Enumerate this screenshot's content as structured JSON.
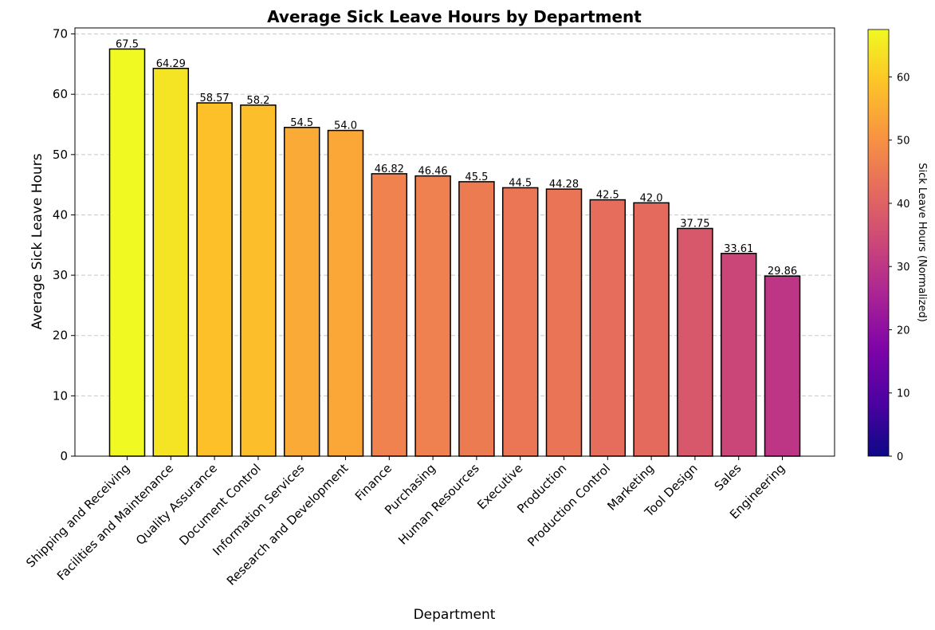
{
  "chart_data": {
    "type": "bar",
    "title": "Average Sick Leave Hours by Department",
    "xlabel": "Department",
    "ylabel": "Average Sick Leave Hours",
    "ylim": [
      0,
      71
    ],
    "yticks": [
      0,
      10,
      20,
      30,
      40,
      50,
      60,
      70
    ],
    "grid": "y-dashed",
    "categories": [
      "Shipping and Receiving",
      "Facilities and Maintenance",
      "Quality Assurance",
      "Document Control",
      "Information Services",
      "Research and Development",
      "Finance",
      "Purchasing",
      "Human Resources",
      "Executive",
      "Production",
      "Production Control",
      "Marketing",
      "Tool Design",
      "Sales",
      "Engineering"
    ],
    "values": [
      67.5,
      64.29,
      58.57,
      58.2,
      54.5,
      54.0,
      46.82,
      46.46,
      45.5,
      44.5,
      44.28,
      42.5,
      42.0,
      37.75,
      33.61,
      29.86
    ],
    "value_labels": [
      "67.5",
      "64.29",
      "58.57",
      "58.2",
      "54.5",
      "54.0",
      "46.82",
      "46.46",
      "45.5",
      "44.5",
      "44.28",
      "42.5",
      "42.0",
      "37.75",
      "33.61",
      "29.86"
    ],
    "colorbar": {
      "label": "Sick Leave Hours (Normalized)",
      "colormap": "plasma",
      "range": [
        0,
        67.5
      ],
      "ticks": [
        0,
        10,
        20,
        30,
        40,
        50,
        60
      ]
    },
    "colors": {
      "edge": "#000000",
      "grid": "#c8c8c8"
    }
  }
}
